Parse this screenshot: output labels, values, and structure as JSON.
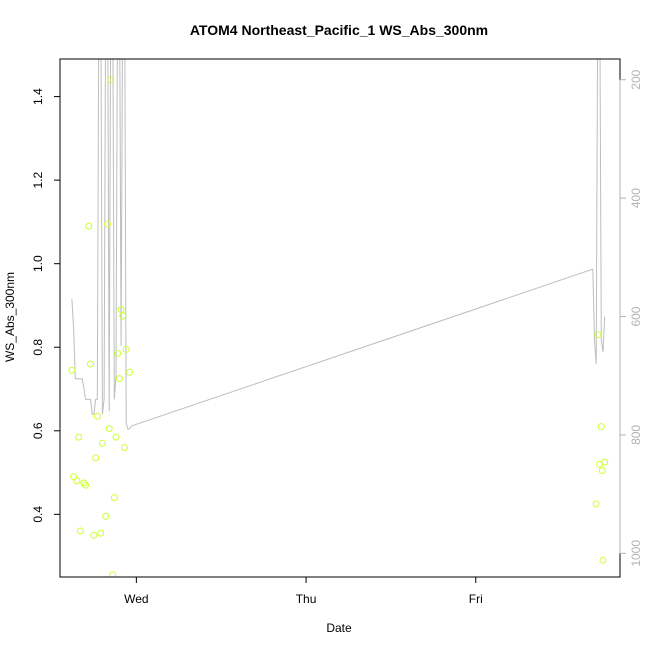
{
  "chart_data": {
    "type": "scatter",
    "title": "ATOM4 Northeast_Pacific_1 WS_Abs_300nm",
    "xlabel": "Date",
    "ylabel": "WS_Abs_300nm",
    "x_ticks": [
      "Wed",
      "Thu",
      "Fri"
    ],
    "y_ticks": [
      "0.4",
      "0.6",
      "0.8",
      "1.0",
      "1.2",
      "1.4"
    ],
    "y2_ticks": [
      "200",
      "400",
      "600",
      "800",
      "1000"
    ],
    "xlim_days": [
      -0.45,
      2.85
    ],
    "ylim": [
      0.25,
      1.49
    ],
    "y2lim": [
      1040,
      165
    ],
    "y2_reversed": true,
    "grid": false,
    "colors": {
      "points": "#ccff33",
      "line": "#bdbdbd",
      "axis": "#000000",
      "right_axis": "#b3b3b3"
    },
    "series": [
      {
        "kind": "points",
        "x_days": [
          -0.38,
          -0.37,
          -0.35,
          -0.34,
          -0.33,
          -0.31,
          -0.3,
          -0.28,
          -0.27,
          -0.25,
          -0.24,
          -0.23,
          -0.21,
          -0.2,
          -0.18,
          -0.17,
          -0.16,
          -0.15,
          -0.14,
          -0.13,
          -0.12,
          -0.11,
          -0.1,
          -0.09,
          -0.08,
          -0.07,
          -0.06,
          -0.04,
          2.71,
          2.72,
          2.73,
          2.74,
          2.745,
          2.75,
          2.76
        ],
        "y": [
          0.745,
          0.49,
          0.48,
          0.585,
          0.36,
          0.475,
          0.47,
          1.09,
          0.76,
          0.35,
          0.535,
          0.635,
          0.355,
          0.57,
          0.395,
          1.095,
          0.605,
          1.44,
          0.255,
          0.44,
          0.585,
          0.785,
          0.725,
          0.89,
          0.875,
          0.56,
          0.795,
          0.74,
          0.425,
          0.83,
          0.52,
          0.61,
          0.505,
          0.29,
          0.525
        ]
      },
      {
        "kind": "line",
        "axis": "right",
        "x_days": [
          -0.38,
          -0.37,
          -0.36,
          -0.32,
          -0.31,
          -0.3,
          -0.27,
          -0.26,
          -0.25,
          -0.24,
          -0.23,
          -0.22,
          -0.21,
          -0.2,
          -0.19,
          -0.18,
          -0.17,
          -0.16,
          -0.15,
          -0.14,
          -0.13,
          -0.12,
          -0.11,
          -0.1,
          -0.09,
          -0.08,
          -0.07,
          -0.06,
          -0.05,
          -0.04,
          -0.03,
          2.69,
          2.7,
          2.71,
          2.72,
          2.73,
          2.74,
          2.75,
          2.76
        ],
        "y": [
          570,
          620,
          705,
          705,
          720,
          740,
          740,
          765,
          765,
          740,
          740,
          0,
          0,
          765,
          740,
          0,
          0,
          760,
          0,
          0,
          740,
          700,
          0,
          0,
          650,
          0,
          0,
          780,
          790,
          790,
          785,
          520,
          640,
          680,
          0,
          0,
          640,
          660,
          600
        ]
      }
    ]
  }
}
